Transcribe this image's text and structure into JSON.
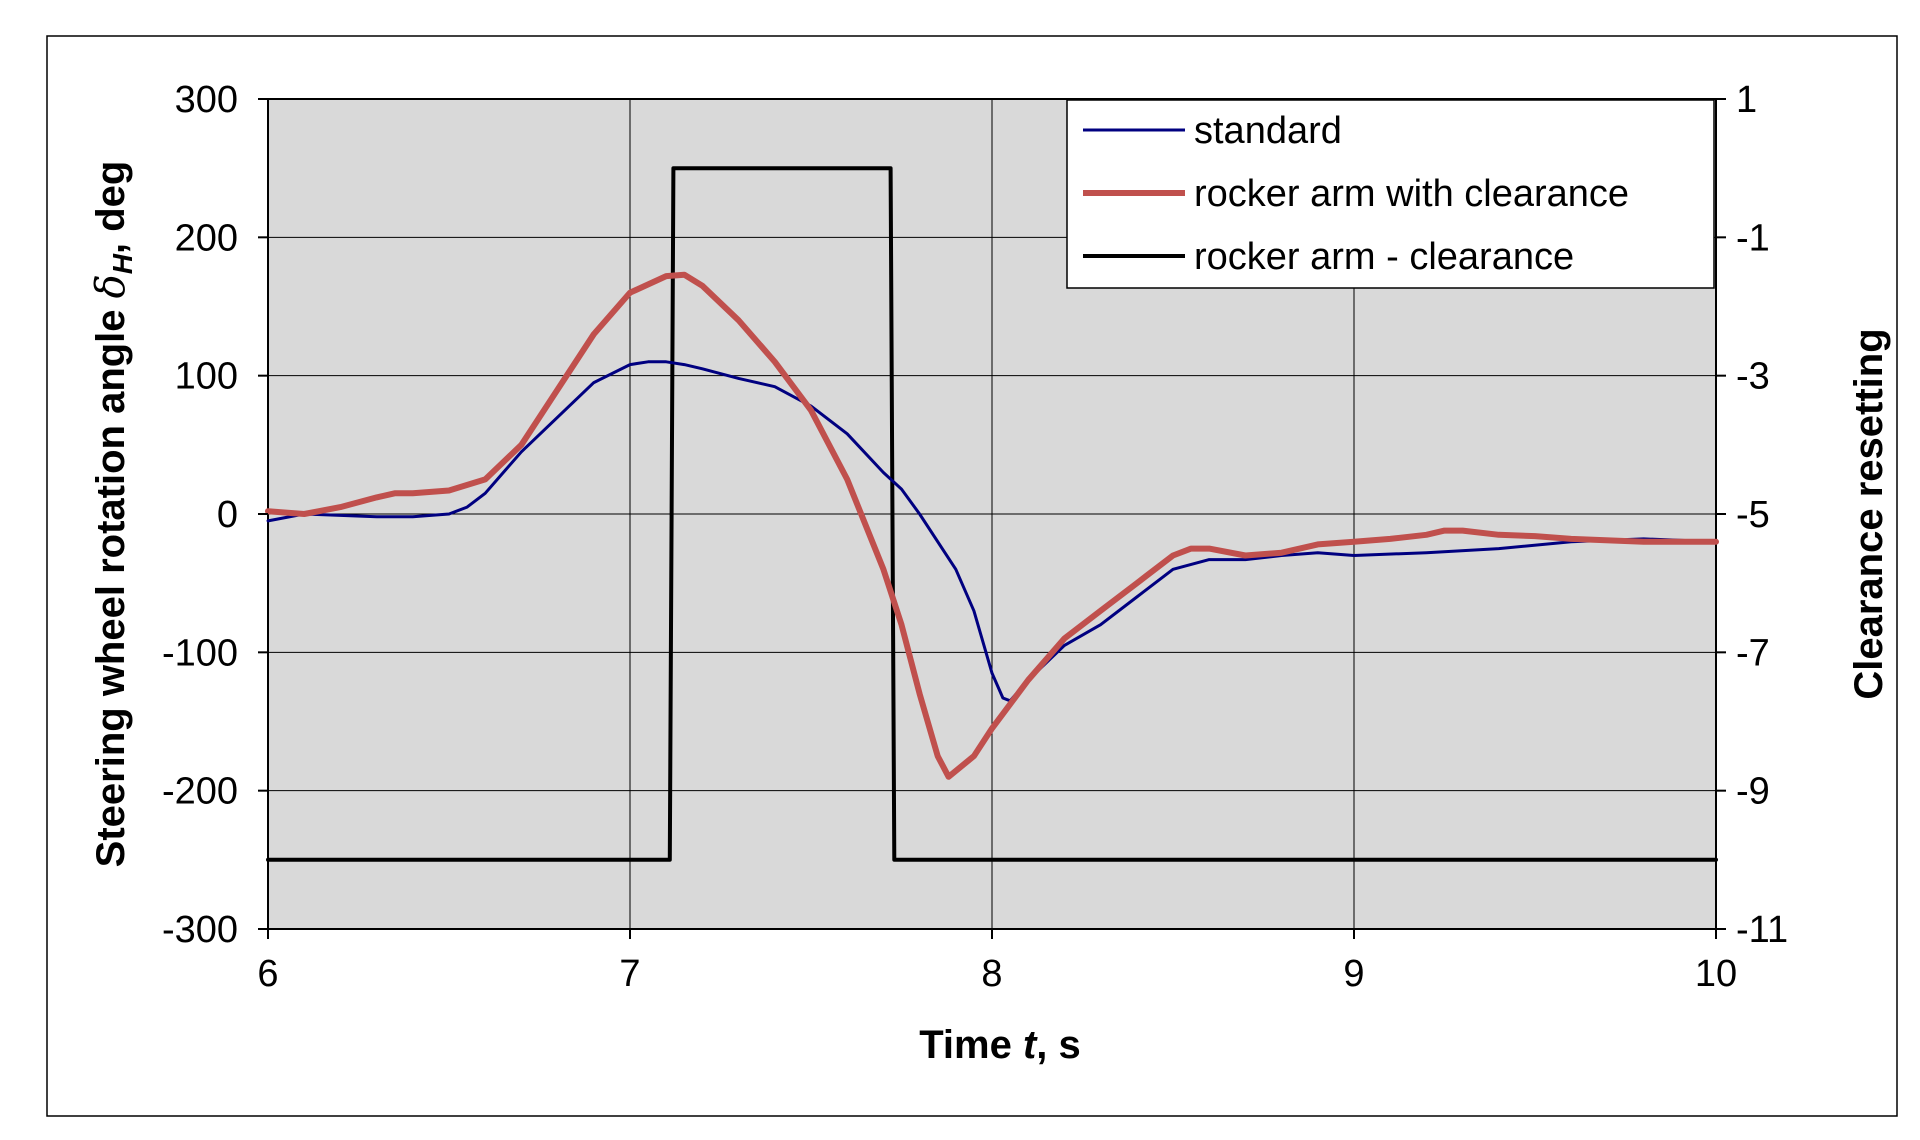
{
  "chart_data": {
    "type": "line",
    "x_axis": {
      "label_pre": "Time ",
      "label_var": "t",
      "label_post": ", s",
      "range": [
        6,
        10
      ],
      "ticks": [
        "6",
        "7",
        "8",
        "9",
        "10"
      ]
    },
    "y_axis_left": {
      "label_pre": "Steering wheel rotation angle ",
      "label_sym": "δ",
      "label_sub": "H",
      "label_post": ", deg",
      "range": [
        -300,
        300
      ],
      "ticks": [
        "300",
        "200",
        "100",
        "0",
        "-100",
        "-200",
        "-300"
      ]
    },
    "y_axis_right": {
      "label": "Clearance resetting",
      "range": [
        -11,
        1
      ],
      "ticks": [
        "1",
        "-1",
        "-3",
        "-5",
        "-7",
        "-9",
        "-11"
      ]
    },
    "grid": true,
    "legend_position": "top-right",
    "colors": {
      "plot_background": "#d9d9d9",
      "grid": "#000000",
      "standard": "#000080",
      "clearance": "#c0504d",
      "resetting": "#000000"
    },
    "series": [
      {
        "name": "standard",
        "axis": "left",
        "x": [
          6.0,
          6.1,
          6.2,
          6.3,
          6.4,
          6.5,
          6.55,
          6.6,
          6.65,
          6.7,
          6.8,
          6.9,
          7.0,
          7.05,
          7.1,
          7.15,
          7.2,
          7.3,
          7.4,
          7.5,
          7.55,
          7.6,
          7.7,
          7.75,
          7.8,
          7.9,
          7.95,
          8.0,
          8.03,
          8.05,
          8.1,
          8.2,
          8.3,
          8.4,
          8.5,
          8.6,
          8.7,
          8.8,
          8.9,
          9.0,
          9.2,
          9.4,
          9.6,
          9.8,
          10.0
        ],
        "y": [
          -5,
          0,
          -1,
          -2,
          -2,
          0,
          5,
          15,
          30,
          45,
          70,
          95,
          108,
          110,
          110,
          108,
          105,
          98,
          92,
          78,
          68,
          58,
          30,
          18,
          0,
          -40,
          -70,
          -115,
          -133,
          -135,
          -120,
          -95,
          -80,
          -60,
          -40,
          -33,
          -33,
          -30,
          -28,
          -30,
          -28,
          -25,
          -20,
          -18,
          -20
        ]
      },
      {
        "name": "rocker arm with clearance",
        "axis": "left",
        "x": [
          6.0,
          6.1,
          6.2,
          6.3,
          6.35,
          6.4,
          6.5,
          6.6,
          6.7,
          6.8,
          6.9,
          7.0,
          7.1,
          7.15,
          7.2,
          7.3,
          7.4,
          7.5,
          7.6,
          7.7,
          7.75,
          7.8,
          7.85,
          7.88,
          7.95,
          8.0,
          8.1,
          8.2,
          8.3,
          8.4,
          8.5,
          8.55,
          8.6,
          8.7,
          8.8,
          8.9,
          9.0,
          9.1,
          9.2,
          9.25,
          9.3,
          9.4,
          9.5,
          9.6,
          9.8,
          10.0
        ],
        "y": [
          2,
          0,
          5,
          12,
          15,
          15,
          17,
          25,
          50,
          90,
          130,
          160,
          172,
          173,
          165,
          140,
          110,
          75,
          25,
          -40,
          -80,
          -130,
          -175,
          -190,
          -175,
          -155,
          -120,
          -90,
          -70,
          -50,
          -30,
          -25,
          -25,
          -30,
          -28,
          -22,
          -20,
          -18,
          -15,
          -12,
          -12,
          -15,
          -16,
          -18,
          -20,
          -20
        ]
      },
      {
        "name": "rocker arm - clearance",
        "axis": "right",
        "x": [
          6.0,
          7.11,
          7.12,
          7.15,
          7.3,
          7.5,
          7.72,
          7.73,
          10.0
        ],
        "y": [
          -10,
          -10,
          0,
          0,
          0,
          0,
          0,
          -10,
          -10
        ]
      }
    ]
  }
}
